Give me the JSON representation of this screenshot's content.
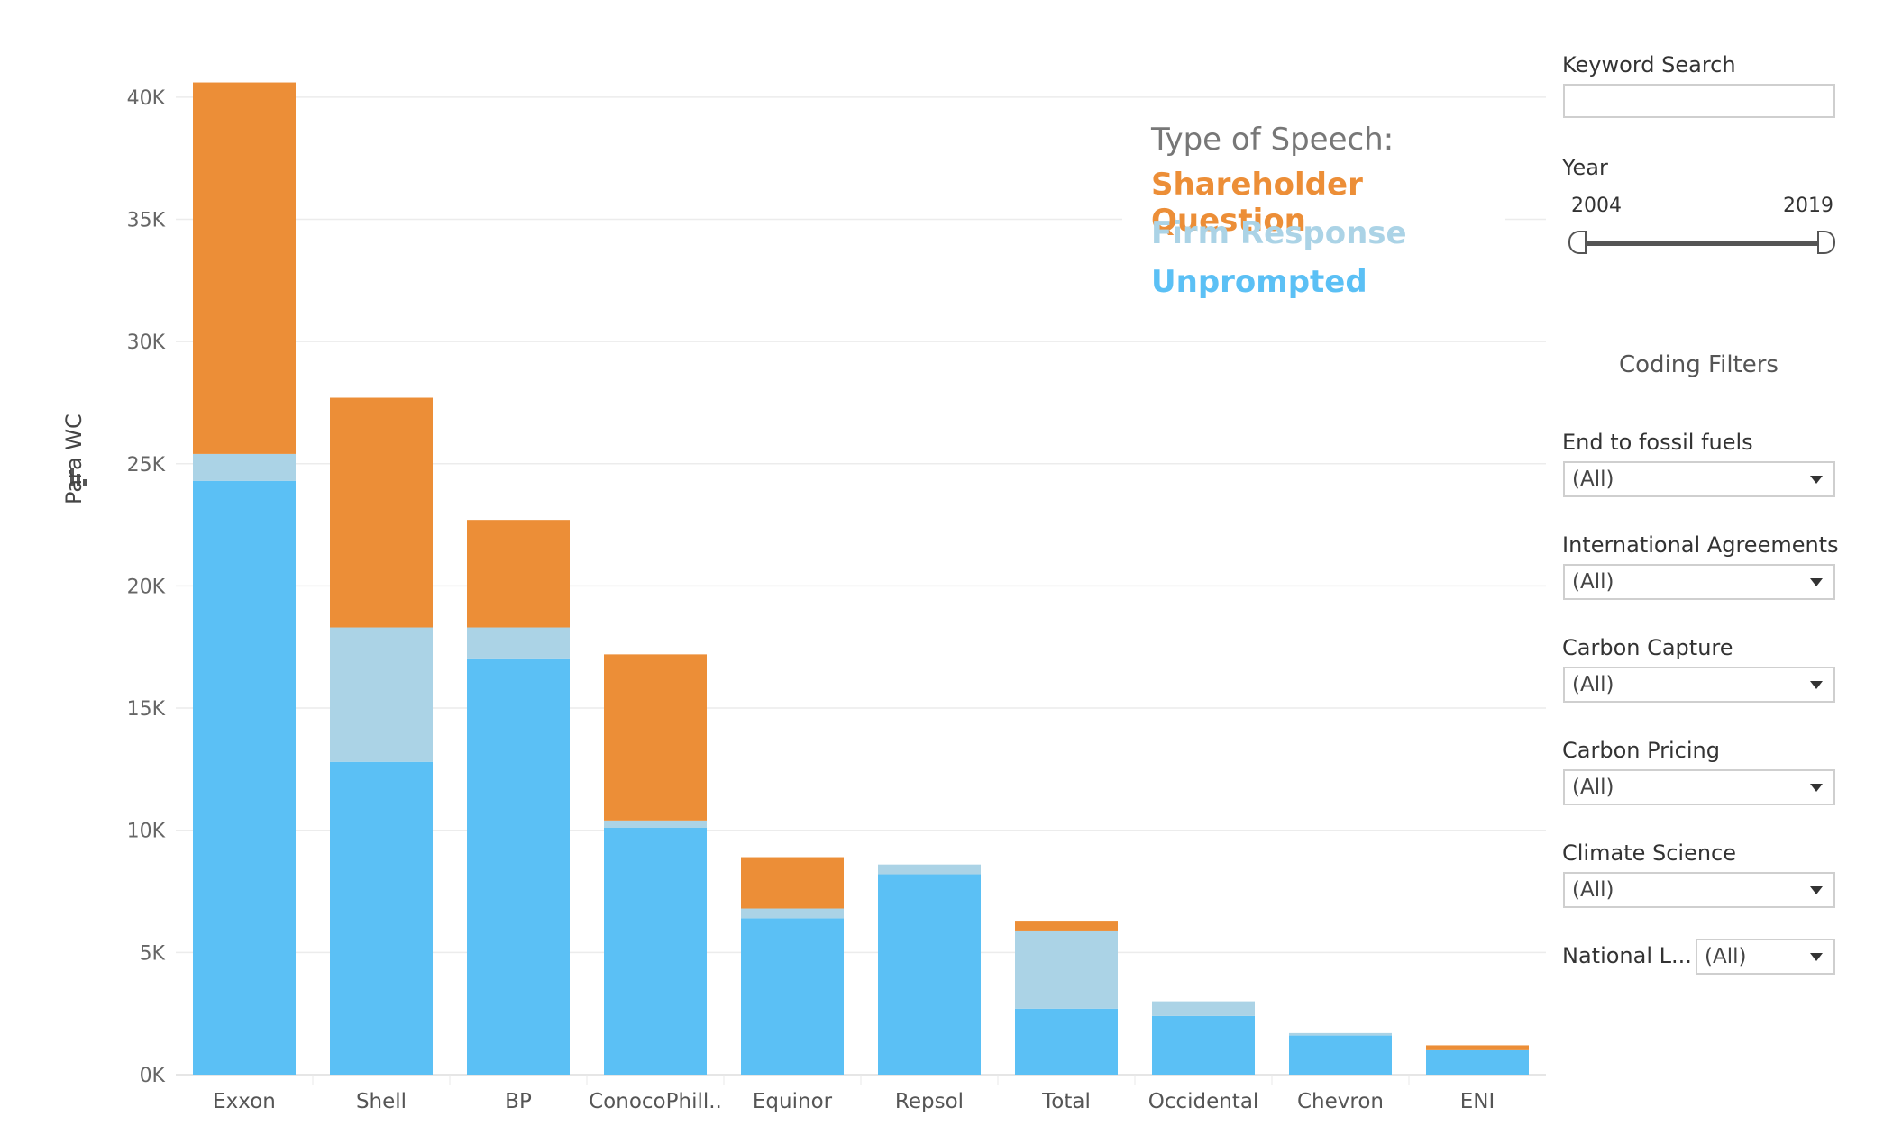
{
  "chart_data": {
    "type": "bar",
    "stacked": true,
    "categories": [
      "Exxon",
      "Shell",
      "BP",
      "ConocoPhill..",
      "Equinor",
      "Repsol",
      "Total",
      "Occidental",
      "Chevron",
      "ENI"
    ],
    "series": [
      {
        "name": "Unprompted",
        "color": "#5bc0f5",
        "values": [
          24300,
          12800,
          17000,
          10100,
          6400,
          8200,
          2700,
          2400,
          1600,
          1000
        ]
      },
      {
        "name": "Firm Response",
        "color": "#abd3e6",
        "values": [
          1100,
          5500,
          1300,
          300,
          400,
          400,
          3200,
          600,
          100,
          0
        ]
      },
      {
        "name": "Shareholder Question",
        "color": "#ec8e37",
        "values": [
          15200,
          9400,
          4400,
          6800,
          2100,
          0,
          400,
          0,
          0,
          200
        ]
      }
    ],
    "ylabel": "Para WC",
    "ylim": [
      0,
      42500
    ],
    "yticks": [
      0,
      5000,
      10000,
      15000,
      20000,
      25000,
      30000,
      35000,
      40000
    ],
    "yticklabels": [
      "0K",
      "5K",
      "10K",
      "15K",
      "20K",
      "25K",
      "30K",
      "35K",
      "40K"
    ],
    "grid": true
  },
  "legend": {
    "title": "Type of Speech:",
    "items": [
      {
        "label": "Shareholder Question",
        "color": "#ec8e37"
      },
      {
        "label": "Firm Response",
        "color": "#abd3e6"
      },
      {
        "label": "Unprompted",
        "color": "#5bc0f5"
      }
    ]
  },
  "filters": {
    "keyword_label": "Keyword Search",
    "keyword_value": "",
    "year_label": "Year",
    "year_min": "2004",
    "year_max": "2019",
    "coding_title": "Coding Filters",
    "dropdowns": [
      {
        "label": "End to fossil fuels",
        "value": "(All)"
      },
      {
        "label": "International Agreements",
        "value": "(All)"
      },
      {
        "label": "Carbon Capture",
        "value": "(All)"
      },
      {
        "label": "Carbon Pricing",
        "value": "(All)"
      },
      {
        "label": "Climate Science",
        "value": "(All)"
      },
      {
        "label": "National L...",
        "value": "(All)"
      }
    ]
  }
}
